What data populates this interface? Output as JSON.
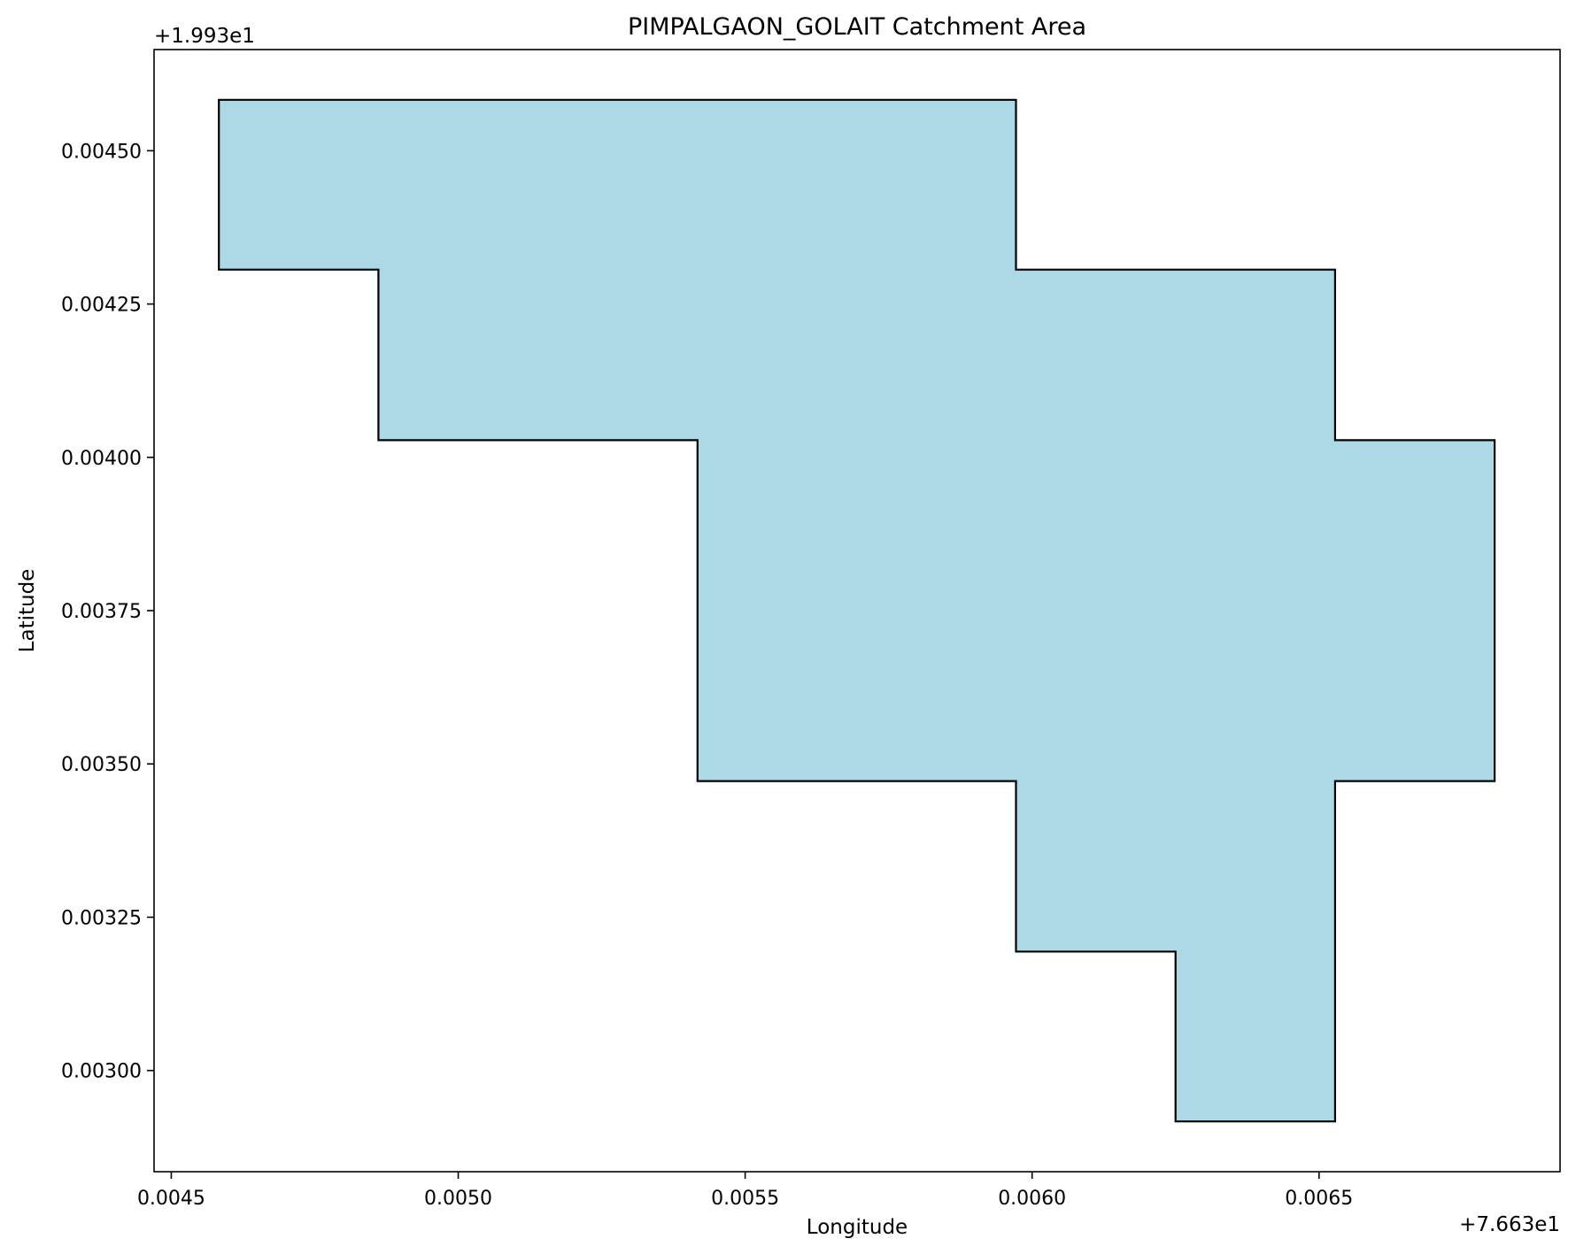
{
  "chart_data": {
    "type": "area",
    "title": "PIMPALGAON_GOLAIT Catchment Area",
    "xlabel": "Longitude",
    "ylabel": "Latitude",
    "x_offset_label": "+7.663e1",
    "y_offset_label": "+1.993e1",
    "xlim": [
      0.00447,
      0.00692
    ],
    "ylim": [
      0.002835,
      0.004665
    ],
    "x_ticks": [
      0.0045,
      0.005,
      0.0055,
      0.006,
      0.0065
    ],
    "x_tick_labels": [
      "0.0045",
      "0.0050",
      "0.0055",
      "0.0060",
      "0.0065"
    ],
    "y_ticks": [
      0.003,
      0.00325,
      0.0035,
      0.00375,
      0.004,
      0.00425,
      0.0045
    ],
    "y_tick_labels": [
      "0.00300",
      "0.00325",
      "0.00350",
      "0.00375",
      "0.00400",
      "0.00425",
      "0.00450"
    ],
    "grid": false,
    "legend": "none",
    "series": [
      {
        "fill_color": "#add8e6",
        "edge_color": "#000000",
        "polygon": [
          [
            0.004583,
            0.004583
          ],
          [
            0.005972,
            0.004583
          ],
          [
            0.005972,
            0.004306
          ],
          [
            0.006528,
            0.004306
          ],
          [
            0.006528,
            0.004028
          ],
          [
            0.006806,
            0.004028
          ],
          [
            0.006806,
            0.003472
          ],
          [
            0.006528,
            0.003472
          ],
          [
            0.006528,
            0.002917
          ],
          [
            0.00625,
            0.002917
          ],
          [
            0.00625,
            0.003194
          ],
          [
            0.005972,
            0.003194
          ],
          [
            0.005972,
            0.003472
          ],
          [
            0.005417,
            0.003472
          ],
          [
            0.005417,
            0.004028
          ],
          [
            0.004861,
            0.004028
          ],
          [
            0.004861,
            0.004306
          ],
          [
            0.004583,
            0.004306
          ]
        ]
      }
    ]
  }
}
